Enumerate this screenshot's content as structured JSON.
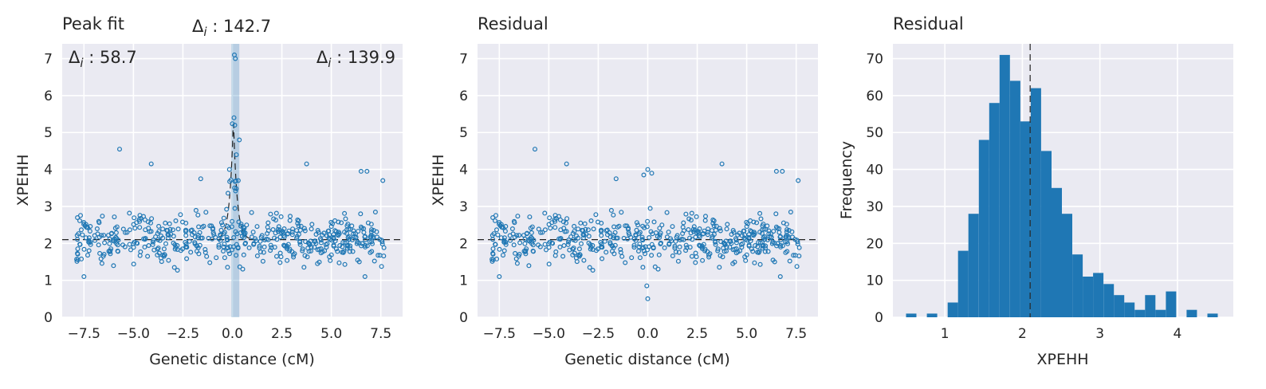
{
  "chart_data": [
    {
      "type": "scatter",
      "title": "Peak fit",
      "xlabel": "Genetic distance (cM)",
      "ylabel": "XPEHH",
      "xlim": [
        -8.6,
        8.6
      ],
      "ylim": [
        0,
        7.4
      ],
      "xticks": [
        -7.5,
        -5.0,
        -2.5,
        0.0,
        2.5,
        5.0,
        7.5
      ],
      "xtick_labels": [
        "−7.5",
        "−5.0",
        "−2.5",
        "0.0",
        "2.5",
        "5.0",
        "7.5"
      ],
      "yticks": [
        0,
        1,
        2,
        3,
        4,
        5,
        6,
        7
      ],
      "ytick_labels": [
        "0",
        "1",
        "2",
        "3",
        "4",
        "5",
        "6",
        "7"
      ],
      "grid": true,
      "baseline": 2.1,
      "peak": {
        "center": 0.05,
        "height": 5.4,
        "band": [
          -0.05,
          0.35
        ]
      },
      "annotations": [
        {
          "label": "Δ",
          "sub": "i",
          "text": " : 58.7",
          "position": "top-left"
        },
        {
          "label": "Δ",
          "sub": "i",
          "text": " : 142.7",
          "position": "above-center"
        },
        {
          "label": "Δ",
          "sub": "i",
          "text": " : 139.9",
          "position": "top-right"
        }
      ],
      "highlight_points": [
        {
          "x": 0.1,
          "y": 7.1
        },
        {
          "x": 0.15,
          "y": 7.0
        },
        {
          "x": 0.08,
          "y": 5.4
        },
        {
          "x": 0.12,
          "y": 5.2
        },
        {
          "x": 0.35,
          "y": 4.8
        },
        {
          "x": -0.15,
          "y": 4.0
        },
        {
          "x": 0.2,
          "y": 4.4
        },
        {
          "x": 0.3,
          "y": 3.7
        },
        {
          "x": -5.7,
          "y": 4.55
        },
        {
          "x": -4.1,
          "y": 4.15
        },
        {
          "x": -1.6,
          "y": 3.75
        },
        {
          "x": 3.75,
          "y": 4.15
        },
        {
          "x": 6.5,
          "y": 3.95
        },
        {
          "x": 6.8,
          "y": 3.95
        },
        {
          "x": 7.6,
          "y": 3.7
        },
        {
          "x": -7.5,
          "y": 1.1
        },
        {
          "x": 6.7,
          "y": 1.1
        }
      ]
    },
    {
      "type": "scatter",
      "title": "Residual",
      "xlabel": "Genetic distance (cM)",
      "ylabel": "XPEHH",
      "xlim": [
        -8.6,
        8.6
      ],
      "ylim": [
        0,
        7.4
      ],
      "xticks": [
        -7.5,
        -5.0,
        -2.5,
        0.0,
        2.5,
        5.0,
        7.5
      ],
      "xtick_labels": [
        "−7.5",
        "−5.0",
        "−2.5",
        "0.0",
        "2.5",
        "5.0",
        "7.5"
      ],
      "yticks": [
        0,
        1,
        2,
        3,
        4,
        5,
        6,
        7
      ],
      "ytick_labels": [
        "0",
        "1",
        "2",
        "3",
        "4",
        "5",
        "6",
        "7"
      ],
      "grid": true,
      "baseline": 2.1,
      "highlight_points": [
        {
          "x": -5.7,
          "y": 4.55
        },
        {
          "x": -4.1,
          "y": 4.15
        },
        {
          "x": -1.6,
          "y": 3.75
        },
        {
          "x": 3.75,
          "y": 4.15
        },
        {
          "x": 6.5,
          "y": 3.95
        },
        {
          "x": 6.8,
          "y": 3.95
        },
        {
          "x": 7.6,
          "y": 3.7
        },
        {
          "x": -0.2,
          "y": 3.85
        },
        {
          "x": 0.0,
          "y": 4.0
        },
        {
          "x": 0.2,
          "y": 3.9
        },
        {
          "x": -0.05,
          "y": 0.85
        },
        {
          "x": 0.0,
          "y": 0.5
        },
        {
          "x": -7.5,
          "y": 1.1
        },
        {
          "x": 6.7,
          "y": 1.1
        }
      ]
    },
    {
      "type": "bar",
      "title": "Residual",
      "xlabel": "XPEHH",
      "ylabel": "Frequency",
      "xlim": [
        0.33,
        4.72
      ],
      "ylim": [
        0,
        74
      ],
      "xticks": [
        1,
        2,
        3,
        4
      ],
      "xtick_labels": [
        "1",
        "2",
        "3",
        "4"
      ],
      "yticks": [
        0,
        10,
        20,
        30,
        40,
        50,
        60,
        70
      ],
      "ytick_labels": [
        "0",
        "10",
        "20",
        "30",
        "40",
        "50",
        "60",
        "70"
      ],
      "grid": true,
      "vline": 2.1,
      "bin_start": 0.5,
      "bin_width": 0.134,
      "values": [
        1,
        0,
        1,
        0,
        4,
        18,
        28,
        48,
        58,
        71,
        64,
        53,
        62,
        45,
        35,
        28,
        17,
        11,
        12,
        9,
        6,
        4,
        2,
        6,
        2,
        7,
        0,
        2,
        0,
        1
      ]
    }
  ]
}
